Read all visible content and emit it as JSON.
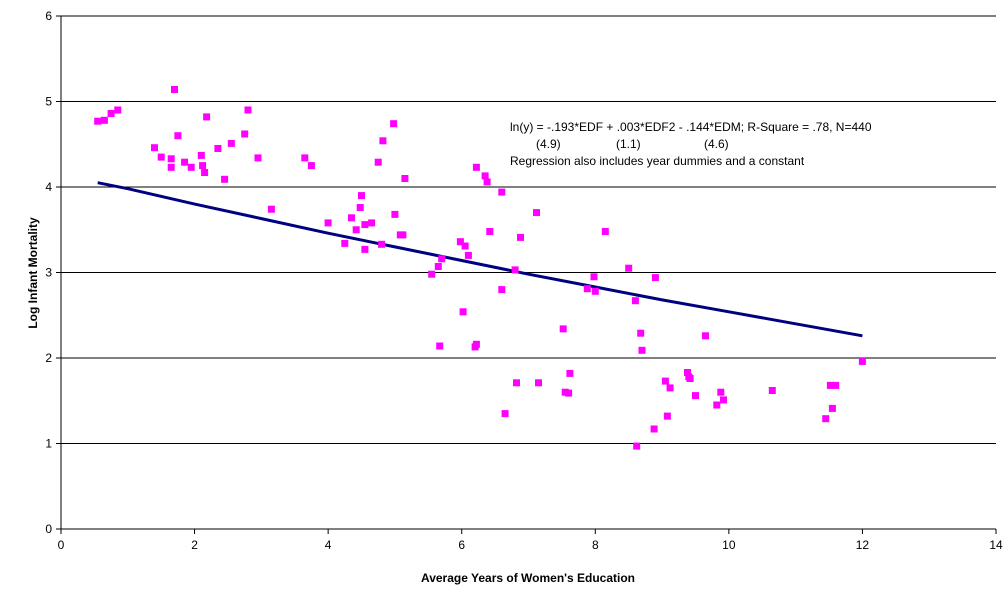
{
  "chart_data": {
    "type": "scatter",
    "xlabel": "Average Years of Women's Education",
    "ylabel": "Log Infant Mortality",
    "xlim": [
      0,
      14
    ],
    "ylim": [
      0,
      6
    ],
    "xticks": [
      0,
      2,
      4,
      6,
      8,
      10,
      12,
      14
    ],
    "yticks": [
      0,
      1,
      2,
      3,
      4,
      5,
      6
    ],
    "grid": "horizontal",
    "colors": {
      "points": "#ff00ff",
      "trend": "#000080",
      "grid": "#000000"
    },
    "annotation": {
      "line1": "ln(y) = -.193*EDF + .003*EDF2 - .144*EDM; R-Square = .78, N=440",
      "se1": "(4.9)",
      "se2": "(1.1)",
      "se3": "(4.6)",
      "line3": "Regression also includes year dummies and a constant"
    },
    "trend_curve": [
      [
        0.55,
        4.05
      ],
      [
        1.0,
        3.98
      ],
      [
        2.0,
        3.8
      ],
      [
        3.0,
        3.63
      ],
      [
        4.0,
        3.46
      ],
      [
        5.0,
        3.3
      ],
      [
        6.0,
        3.14
      ],
      [
        7.0,
        2.98
      ],
      [
        8.0,
        2.83
      ],
      [
        9.0,
        2.68
      ],
      [
        10.0,
        2.54
      ],
      [
        11.0,
        2.4
      ],
      [
        12.0,
        2.26
      ]
    ],
    "points": [
      [
        0.55,
        4.77
      ],
      [
        0.65,
        4.78
      ],
      [
        0.75,
        4.86
      ],
      [
        0.85,
        4.9
      ],
      [
        1.7,
        5.14
      ],
      [
        1.4,
        4.46
      ],
      [
        1.5,
        4.35
      ],
      [
        1.65,
        4.33
      ],
      [
        1.65,
        4.23
      ],
      [
        1.75,
        4.6
      ],
      [
        1.85,
        4.29
      ],
      [
        1.95,
        4.23
      ],
      [
        2.1,
        4.37
      ],
      [
        2.12,
        4.25
      ],
      [
        2.15,
        4.17
      ],
      [
        2.18,
        4.82
      ],
      [
        2.35,
        4.45
      ],
      [
        2.45,
        4.09
      ],
      [
        2.55,
        4.51
      ],
      [
        2.75,
        4.62
      ],
      [
        2.8,
        4.9
      ],
      [
        2.95,
        4.34
      ],
      [
        3.15,
        3.74
      ],
      [
        3.65,
        4.34
      ],
      [
        3.75,
        4.25
      ],
      [
        4.0,
        3.58
      ],
      [
        4.25,
        3.34
      ],
      [
        4.35,
        3.64
      ],
      [
        4.42,
        3.5
      ],
      [
        4.48,
        3.76
      ],
      [
        4.5,
        3.9
      ],
      [
        4.55,
        3.56
      ],
      [
        4.55,
        3.27
      ],
      [
        4.65,
        3.58
      ],
      [
        4.75,
        4.29
      ],
      [
        4.8,
        3.33
      ],
      [
        4.82,
        4.54
      ],
      [
        4.98,
        4.74
      ],
      [
        5.0,
        3.68
      ],
      [
        5.08,
        3.44
      ],
      [
        5.12,
        3.44
      ],
      [
        5.15,
        4.1
      ],
      [
        5.55,
        2.98
      ],
      [
        5.65,
        3.07
      ],
      [
        5.67,
        2.14
      ],
      [
        5.7,
        3.16
      ],
      [
        5.98,
        3.36
      ],
      [
        6.02,
        2.54
      ],
      [
        6.05,
        3.31
      ],
      [
        6.1,
        3.2
      ],
      [
        6.2,
        2.13
      ],
      [
        6.22,
        2.16
      ],
      [
        6.22,
        4.23
      ],
      [
        6.35,
        4.13
      ],
      [
        6.38,
        4.06
      ],
      [
        6.42,
        3.48
      ],
      [
        6.6,
        3.94
      ],
      [
        6.6,
        2.8
      ],
      [
        6.65,
        1.35
      ],
      [
        6.8,
        3.03
      ],
      [
        6.82,
        1.71
      ],
      [
        6.88,
        3.41
      ],
      [
        7.12,
        3.7
      ],
      [
        7.15,
        1.71
      ],
      [
        7.52,
        2.34
      ],
      [
        7.55,
        1.6
      ],
      [
        7.6,
        1.59
      ],
      [
        7.62,
        1.82
      ],
      [
        7.88,
        2.81
      ],
      [
        7.98,
        2.95
      ],
      [
        8.0,
        2.78
      ],
      [
        8.15,
        3.48
      ],
      [
        8.5,
        3.05
      ],
      [
        8.6,
        2.67
      ],
      [
        8.62,
        0.97
      ],
      [
        8.68,
        2.29
      ],
      [
        8.7,
        2.09
      ],
      [
        8.88,
        1.17
      ],
      [
        8.9,
        2.94
      ],
      [
        9.05,
        1.73
      ],
      [
        9.08,
        1.32
      ],
      [
        9.12,
        1.65
      ],
      [
        9.38,
        1.83
      ],
      [
        9.4,
        1.78
      ],
      [
        9.42,
        1.76
      ],
      [
        9.5,
        1.56
      ],
      [
        9.65,
        2.26
      ],
      [
        9.82,
        1.45
      ],
      [
        9.88,
        1.6
      ],
      [
        9.92,
        1.51
      ],
      [
        10.65,
        1.62
      ],
      [
        11.45,
        1.29
      ],
      [
        11.52,
        1.68
      ],
      [
        11.55,
        1.41
      ],
      [
        11.6,
        1.68
      ],
      [
        12.0,
        1.96
      ]
    ]
  }
}
